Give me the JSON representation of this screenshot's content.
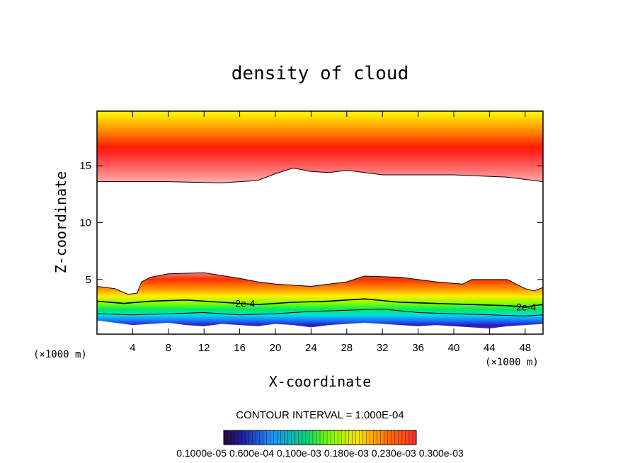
{
  "chart_data": {
    "type": "heatmap",
    "title": "density of cloud",
    "xlabel": "X-coordinate",
    "ylabel": "Z-coordinate",
    "x_unit": "(×1000 m)",
    "xlim": [
      0,
      50
    ],
    "ylim": [
      0.2,
      19.8
    ],
    "x_ticks": [
      4,
      8,
      12,
      16,
      20,
      24,
      28,
      32,
      36,
      40,
      44,
      48
    ],
    "y_ticks": [
      5,
      10,
      15
    ],
    "contour_interval_text": "CONTOUR INTERVAL = 1.000E-04",
    "colorbar_labels_text": "0.1000e-05 0.600e-04 0.100e-03 0.180e-03 0.230e-03 0.300e-03",
    "contour_labels": [
      {
        "text": "2e-4",
        "x": 15.5,
        "z": 2.9
      },
      {
        "text": "2e-4",
        "x": 47,
        "z": 2.6
      }
    ],
    "upper_layer": {
      "top_z": 19.8,
      "core_z": [
        [
          0,
          15.9
        ],
        [
          4,
          15.9
        ],
        [
          10,
          16.0
        ],
        [
          16,
          16.3
        ],
        [
          20,
          16.6
        ],
        [
          24,
          16.1
        ],
        [
          28,
          16.0
        ],
        [
          36,
          15.9
        ],
        [
          44,
          15.8
        ],
        [
          50,
          15.8
        ]
      ],
      "base_z": [
        [
          0,
          13.6
        ],
        [
          8,
          13.6
        ],
        [
          14,
          13.5
        ],
        [
          18,
          13.7
        ],
        [
          20,
          14.3
        ],
        [
          22,
          14.8
        ],
        [
          24,
          14.5
        ],
        [
          26,
          14.4
        ],
        [
          28,
          14.6
        ],
        [
          30,
          14.4
        ],
        [
          32,
          14.2
        ],
        [
          40,
          14.2
        ],
        [
          46,
          14.0
        ],
        [
          50,
          13.6
        ]
      ]
    },
    "lower_layer": {
      "top_z": [
        [
          0,
          4.4
        ],
        [
          2,
          4.2
        ],
        [
          3.5,
          3.7
        ],
        [
          4.5,
          3.8
        ],
        [
          5,
          4.8
        ],
        [
          6,
          5.2
        ],
        [
          8,
          5.5
        ],
        [
          12,
          5.6
        ],
        [
          16,
          5.1
        ],
        [
          18,
          4.8
        ],
        [
          20,
          4.6
        ],
        [
          24,
          4.4
        ],
        [
          28,
          4.8
        ],
        [
          30,
          5.3
        ],
        [
          34,
          5.2
        ],
        [
          38,
          4.8
        ],
        [
          41,
          4.6
        ],
        [
          42,
          5.0
        ],
        [
          46,
          5.0
        ],
        [
          48,
          4.2
        ],
        [
          49,
          4.0
        ],
        [
          50,
          4.3
        ]
      ],
      "contour_2e4_z": [
        [
          0,
          3.1
        ],
        [
          3,
          2.9
        ],
        [
          6,
          3.1
        ],
        [
          10,
          3.2
        ],
        [
          14,
          3.0
        ],
        [
          18,
          2.8
        ],
        [
          22,
          3.0
        ],
        [
          26,
          3.1
        ],
        [
          30,
          3.3
        ],
        [
          34,
          3.0
        ],
        [
          38,
          2.9
        ],
        [
          42,
          2.8
        ],
        [
          46,
          2.7
        ],
        [
          48,
          2.6
        ],
        [
          50,
          2.8
        ]
      ],
      "contour_low_z": [
        [
          0,
          2.0
        ],
        [
          4,
          1.9
        ],
        [
          8,
          2.0
        ],
        [
          12,
          2.1
        ],
        [
          16,
          1.9
        ],
        [
          20,
          2.0
        ],
        [
          24,
          2.2
        ],
        [
          28,
          2.3
        ],
        [
          32,
          2.4
        ],
        [
          36,
          2.1
        ],
        [
          40,
          2.0
        ],
        [
          44,
          1.9
        ],
        [
          48,
          1.8
        ],
        [
          50,
          1.9
        ]
      ],
      "base_z": [
        [
          0,
          1.4
        ],
        [
          2,
          1.2
        ],
        [
          4,
          1.0
        ],
        [
          6,
          1.1
        ],
        [
          8,
          1.2
        ],
        [
          10,
          1.0
        ],
        [
          12,
          0.9
        ],
        [
          14,
          1.1
        ],
        [
          16,
          1.0
        ],
        [
          18,
          0.9
        ],
        [
          20,
          1.1
        ],
        [
          22,
          1.0
        ],
        [
          24,
          0.8
        ],
        [
          26,
          1.0
        ],
        [
          28,
          1.1
        ],
        [
          30,
          1.2
        ],
        [
          32,
          1.1
        ],
        [
          34,
          1.0
        ],
        [
          36,
          0.9
        ],
        [
          38,
          1.0
        ],
        [
          40,
          0.9
        ],
        [
          42,
          0.8
        ],
        [
          44,
          0.7
        ],
        [
          46,
          0.9
        ],
        [
          48,
          1.0
        ],
        [
          50,
          1.1
        ]
      ]
    }
  }
}
